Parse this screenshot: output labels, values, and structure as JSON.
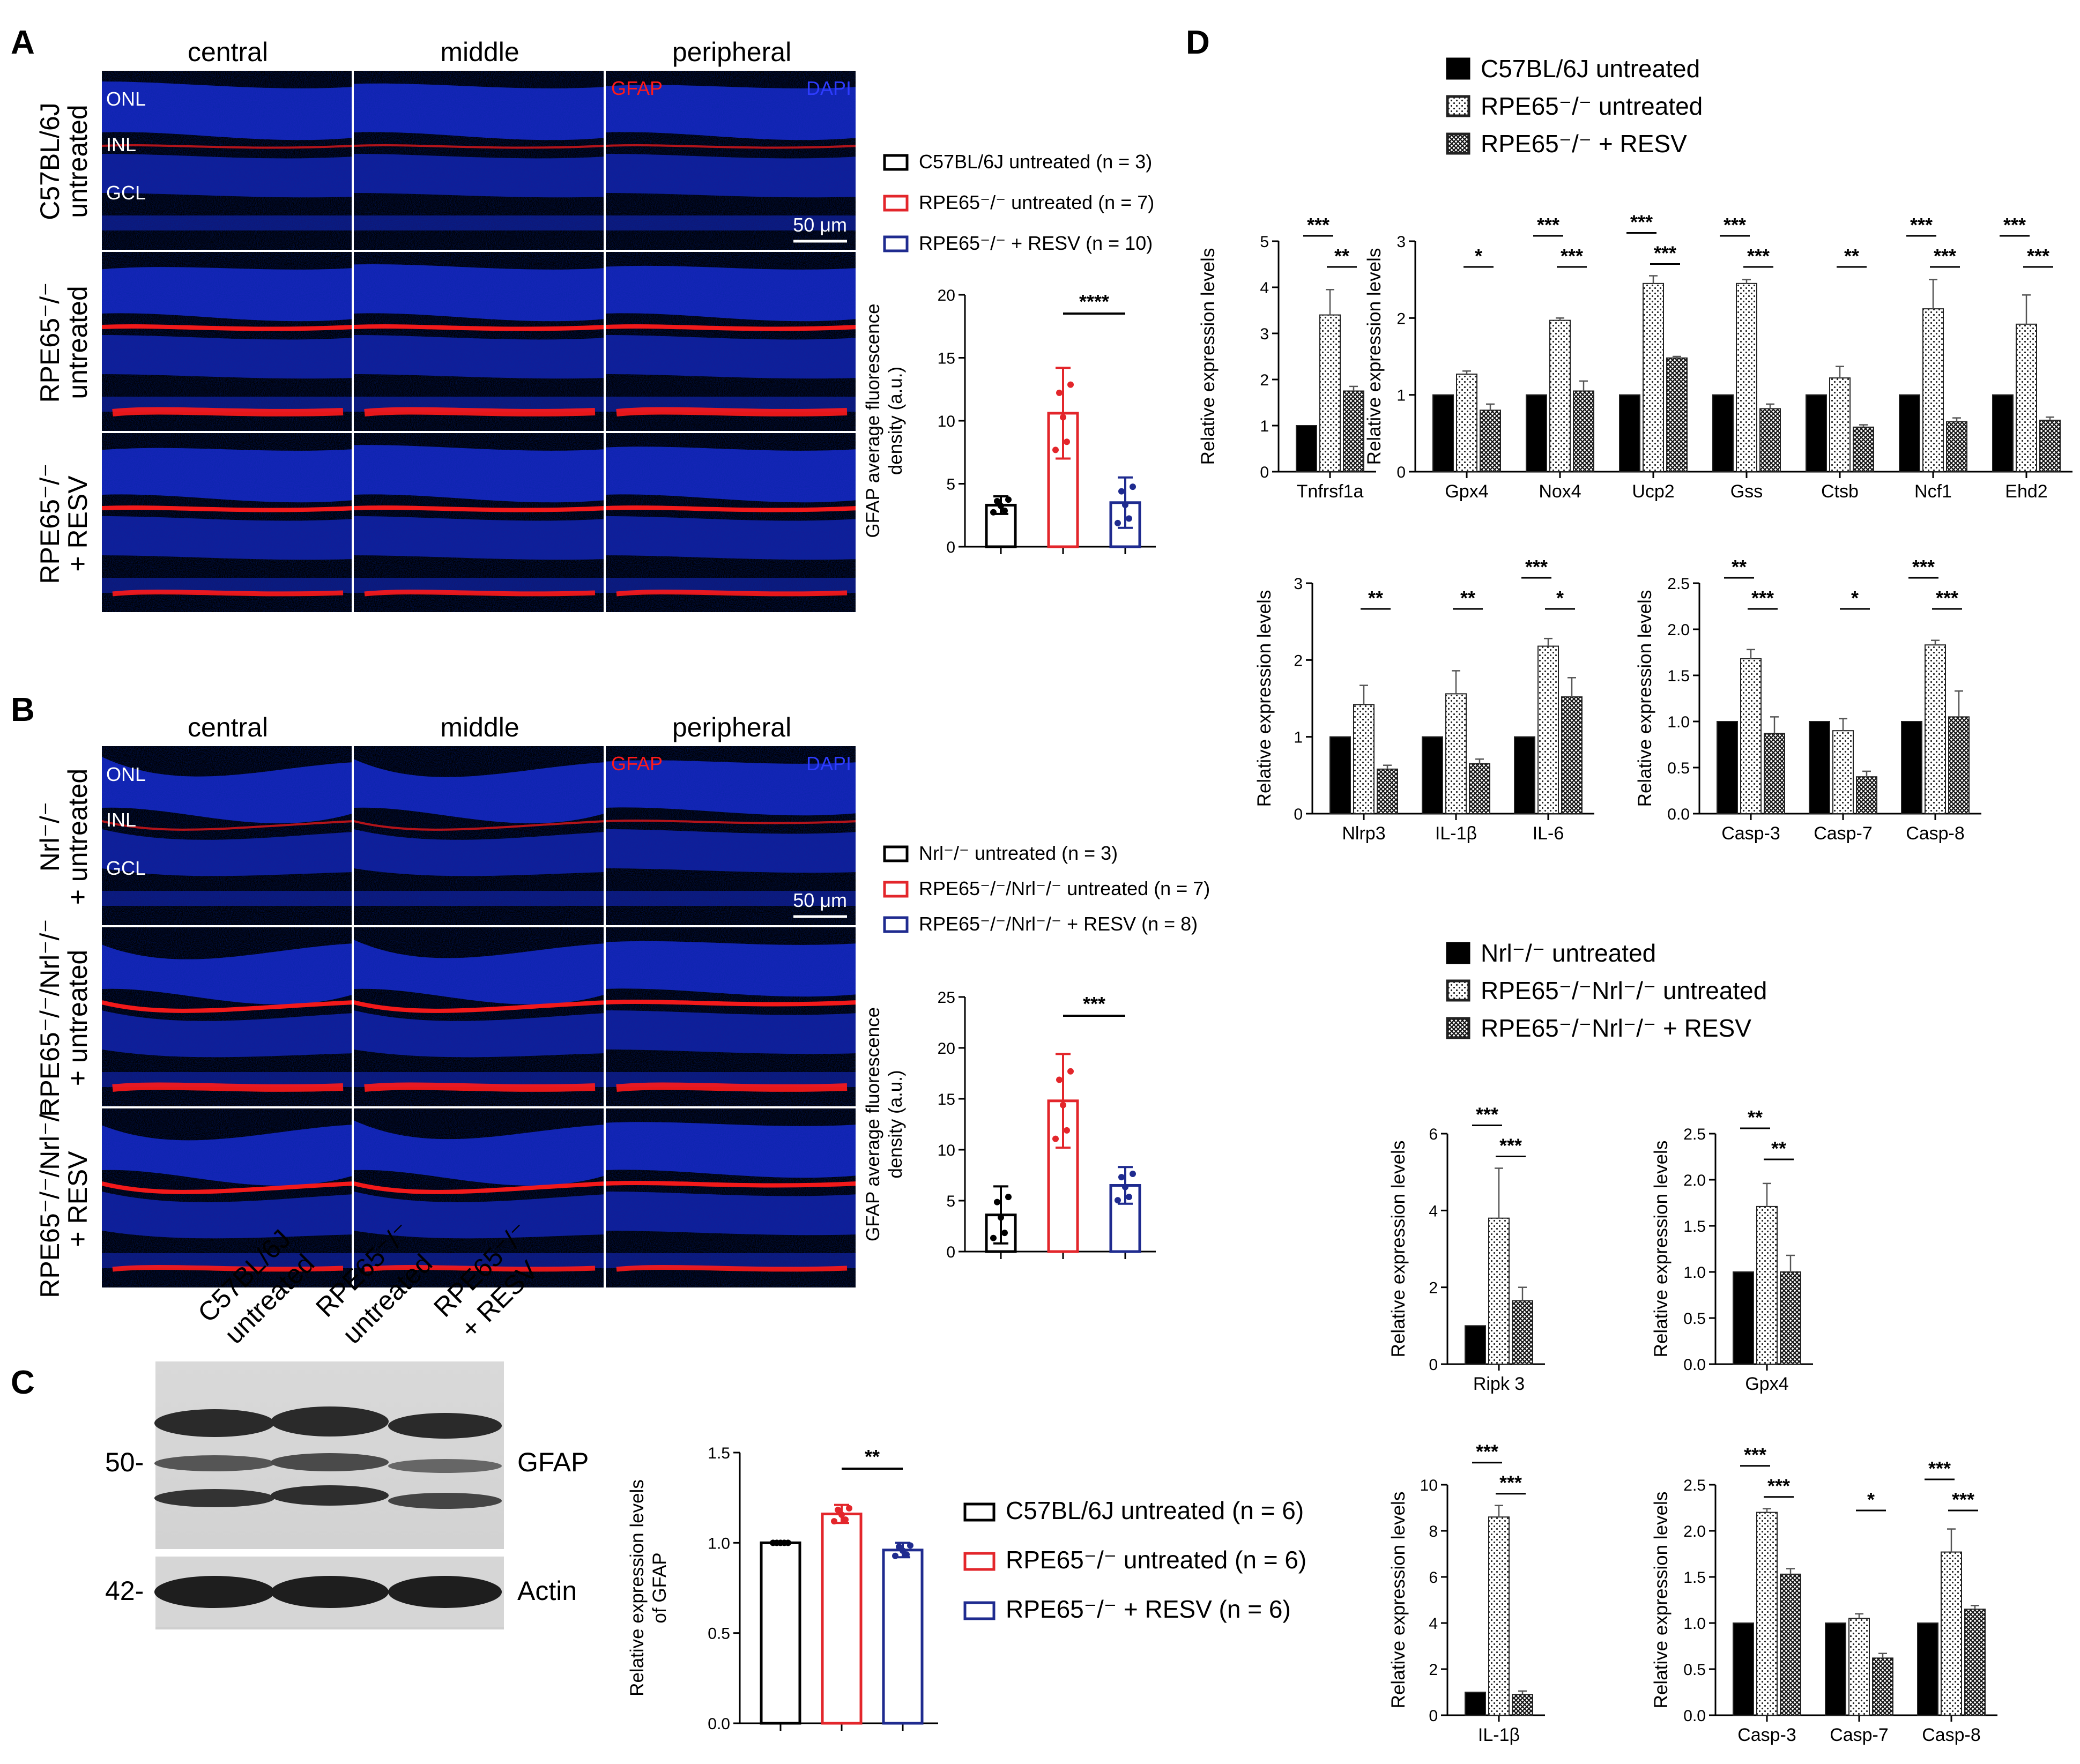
{
  "panels": {
    "a": "A",
    "b": "B",
    "c": "C",
    "d": "D"
  },
  "micro_a": {
    "cols": [
      "central",
      "middle",
      "peripheral"
    ],
    "rows": [
      [
        "C57BL/6J",
        "untreated"
      ],
      [
        "RPE65⁻/⁻",
        "untreated"
      ],
      [
        "RPE65⁻/⁻",
        "+ RESV"
      ]
    ],
    "layers": [
      "ONL",
      "INL",
      "GCL"
    ],
    "stain_red": "GFAP",
    "stain_blue": "DAPI",
    "scale": "50 μm"
  },
  "micro_b": {
    "cols": [
      "central",
      "middle",
      "peripheral"
    ],
    "rows": [
      [
        "Nrl⁻/⁻",
        "+ untreated"
      ],
      [
        "RPE65⁻/⁻/Nrl⁻/⁻",
        "+ untreated"
      ],
      [
        "RPE65⁻/⁻/Nrl⁻/⁻",
        "+ RESV"
      ]
    ],
    "layers": [
      "ONL",
      "INL",
      "GCL"
    ],
    "stain_red": "GFAP",
    "stain_blue": "DAPI",
    "scale": "50 μm"
  },
  "blot_c": {
    "lanes": [
      [
        "C57BL/6J",
        "untreated"
      ],
      [
        "RPE65⁻/⁻",
        "untreated"
      ],
      [
        "RPE65⁻/⁻",
        "+ RESV"
      ]
    ],
    "markers": [
      "50-",
      "42-"
    ],
    "bands": [
      "GFAP",
      "Actin"
    ]
  },
  "legends": {
    "a": [
      "C57BL/6J untreated (n = 3)",
      "RPE65⁻/⁻ untreated (n = 7)",
      "RPE65⁻/⁻ + RESV (n = 10)"
    ],
    "b": [
      "Nrl⁻/⁻ untreated (n = 3)",
      "RPE65⁻/⁻/Nrl⁻/⁻ untreated (n = 7)",
      "RPE65⁻/⁻/Nrl⁻/⁻ + RESV (n = 8)"
    ],
    "c": [
      "C57BL/6J untreated (n = 6)",
      "RPE65⁻/⁻ untreated (n = 6)",
      "RPE65⁻/⁻ + RESV (n = 6)"
    ],
    "d1": [
      "C57BL/6J untreated",
      "RPE65⁻/⁻ untreated",
      "RPE65⁻/⁻ + RESV"
    ],
    "d2": [
      "Nrl⁻/⁻ untreated",
      "RPE65⁻/⁻Nrl⁻/⁻ untreated",
      "RPE65⁻/⁻Nrl⁻/⁻ + RESV"
    ]
  },
  "colors": {
    "black": "#000000",
    "red": "#e3262b",
    "blue": "#1f2b8f",
    "dapi": "#1a2bd8",
    "gfap": "#ff1a1a"
  },
  "chart_data": [
    {
      "id": "a",
      "type": "bar",
      "ylabel": "GFAP average fluorescence density (a.u.)",
      "ylim": [
        0,
        20
      ],
      "yticks": [
        0,
        5,
        10,
        15,
        20
      ],
      "series": [
        {
          "name": "C57BL/6J untreated (n = 3)",
          "value": 3.3,
          "err": 0.7
        },
        {
          "name": "RPE65⁻/⁻ untreated (n = 7)",
          "value": 10.6,
          "err": 3.6
        },
        {
          "name": "RPE65⁻/⁻ + RESV (n = 10)",
          "value": 3.5,
          "err": 2.0
        }
      ],
      "sig": [
        {
          "a": 1,
          "b": 2,
          "t": "****"
        }
      ]
    },
    {
      "id": "b",
      "type": "bar",
      "ylabel": "GFAP average fluorescence density (a.u.)",
      "ylim": [
        0,
        25
      ],
      "yticks": [
        0,
        5,
        10,
        15,
        20,
        25
      ],
      "series": [
        {
          "name": "Nrl⁻/⁻ untreated (n = 3)",
          "value": 3.6,
          "err": 2.8
        },
        {
          "name": "RPE65⁻/⁻/Nrl⁻/⁻ untreated (n = 7)",
          "value": 14.8,
          "err": 4.6
        },
        {
          "name": "RPE65⁻/⁻/Nrl⁻/⁻ + RESV (n = 8)",
          "value": 6.5,
          "err": 1.8
        }
      ],
      "sig": [
        {
          "a": 1,
          "b": 2,
          "t": "***"
        }
      ]
    },
    {
      "id": "c",
      "type": "bar",
      "ylabel": "Relative expression levels of GFAP",
      "ylim": [
        0,
        1.5
      ],
      "yticks": [
        0.0,
        0.5,
        1.0,
        1.5
      ],
      "series": [
        {
          "name": "C57BL/6J untreated (n = 6)",
          "value": 1.0,
          "err": 0.0
        },
        {
          "name": "RPE65⁻/⁻ untreated (n = 6)",
          "value": 1.16,
          "err": 0.05
        },
        {
          "name": "RPE65⁻/⁻ + RESV (n = 6)",
          "value": 0.96,
          "err": 0.04
        }
      ],
      "sig": [
        {
          "a": 1,
          "b": 2,
          "t": "**"
        }
      ]
    },
    {
      "id": "d1",
      "type": "bar",
      "ylabel": "Relative expression levels",
      "ylim": [
        0,
        5
      ],
      "yticks": [
        0,
        1,
        2,
        3,
        4,
        5
      ],
      "categories": [
        "Tnfrsf1a"
      ],
      "values": [
        [
          1,
          3.4,
          1.75
        ]
      ],
      "errs": [
        [
          0,
          0.55,
          0.1
        ]
      ],
      "sig": [
        {
          "g": 0,
          "a": 0,
          "b": 1,
          "t": "***"
        },
        {
          "g": 0,
          "a": 1,
          "b": 2,
          "t": "**"
        }
      ]
    },
    {
      "id": "d2",
      "type": "bar",
      "ylabel": "Relative expression levels",
      "ylim": [
        0,
        3
      ],
      "yticks": [
        0,
        1,
        2,
        3
      ],
      "categories": [
        "Gpx4",
        "Nox4",
        "Ucp2",
        "Gss",
        "Ctsb",
        "Ncf1",
        "Ehd2"
      ],
      "values": [
        [
          1,
          1.27,
          0.8
        ],
        [
          1,
          1.97,
          1.05
        ],
        [
          1,
          2.45,
          1.48
        ],
        [
          1,
          2.45,
          0.82
        ],
        [
          1,
          1.22,
          0.58
        ],
        [
          1,
          2.12,
          0.65
        ],
        [
          1,
          1.92,
          0.67
        ]
      ],
      "errs": [
        [
          0,
          0.04,
          0.08
        ],
        [
          0,
          0.03,
          0.13
        ],
        [
          0,
          0.1,
          0.02
        ],
        [
          0,
          0.05,
          0.06
        ],
        [
          0,
          0.15,
          0.03
        ],
        [
          0,
          0.38,
          0.05
        ],
        [
          0,
          0.38,
          0.04
        ]
      ],
      "sig": [
        {
          "g": 0,
          "a": 1,
          "b": 2,
          "t": "*"
        },
        {
          "g": 1,
          "a": 0,
          "b": 1,
          "t": "***"
        },
        {
          "g": 1,
          "a": 1,
          "b": 2,
          "t": "***"
        },
        {
          "g": 2,
          "a": 0,
          "b": 1,
          "t": "***"
        },
        {
          "g": 2,
          "a": 1,
          "b": 2,
          "t": "***"
        },
        {
          "g": 3,
          "a": 0,
          "b": 1,
          "t": "***"
        },
        {
          "g": 3,
          "a": 1,
          "b": 2,
          "t": "***"
        },
        {
          "g": 4,
          "a": 1,
          "b": 2,
          "t": "**"
        },
        {
          "g": 5,
          "a": 0,
          "b": 1,
          "t": "***"
        },
        {
          "g": 5,
          "a": 1,
          "b": 2,
          "t": "***"
        },
        {
          "g": 6,
          "a": 0,
          "b": 1,
          "t": "***"
        },
        {
          "g": 6,
          "a": 1,
          "b": 2,
          "t": "***"
        }
      ]
    },
    {
      "id": "d3",
      "type": "bar",
      "ylabel": "Relative expression levels",
      "ylim": [
        0,
        3
      ],
      "yticks": [
        0,
        1,
        2,
        3
      ],
      "categories": [
        "Nlrp3",
        "IL-1β",
        "IL-6"
      ],
      "values": [
        [
          1,
          1.42,
          0.58
        ],
        [
          1,
          1.56,
          0.65
        ],
        [
          1,
          2.18,
          1.52
        ]
      ],
      "errs": [
        [
          0,
          0.25,
          0.05
        ],
        [
          0,
          0.3,
          0.06
        ],
        [
          0,
          0.1,
          0.25
        ]
      ],
      "sig": [
        {
          "g": 0,
          "a": 1,
          "b": 2,
          "t": "**"
        },
        {
          "g": 1,
          "a": 1,
          "b": 2,
          "t": "**"
        },
        {
          "g": 2,
          "a": 0,
          "b": 1,
          "t": "***"
        },
        {
          "g": 2,
          "a": 1,
          "b": 2,
          "t": "*"
        }
      ]
    },
    {
      "id": "d4",
      "type": "bar",
      "ylabel": "Relative expression levels",
      "ylim": [
        0,
        2.5
      ],
      "yticks": [
        0.0,
        0.5,
        1.0,
        1.5,
        2.0,
        2.5
      ],
      "categories": [
        "Casp-3",
        "Casp-7",
        "Casp-8"
      ],
      "values": [
        [
          1,
          1.68,
          0.87
        ],
        [
          1,
          0.9,
          0.4
        ],
        [
          1,
          1.83,
          1.05
        ]
      ],
      "errs": [
        [
          0,
          0.1,
          0.18
        ],
        [
          0,
          0.13,
          0.06
        ],
        [
          0,
          0.05,
          0.28
        ]
      ],
      "sig": [
        {
          "g": 0,
          "a": 0,
          "b": 1,
          "t": "**"
        },
        {
          "g": 0,
          "a": 1,
          "b": 2,
          "t": "***"
        },
        {
          "g": 1,
          "a": 1,
          "b": 2,
          "t": "*"
        },
        {
          "g": 2,
          "a": 0,
          "b": 1,
          "t": "***"
        },
        {
          "g": 2,
          "a": 1,
          "b": 2,
          "t": "***"
        }
      ]
    },
    {
      "id": "d5",
      "type": "bar",
      "ylabel": "Relative expression levels",
      "ylim": [
        0,
        6
      ],
      "yticks": [
        0,
        2,
        4,
        6
      ],
      "categories": [
        "Ripk 3"
      ],
      "values": [
        [
          1,
          3.8,
          1.65
        ]
      ],
      "errs": [
        [
          0,
          1.3,
          0.35
        ]
      ],
      "sig": [
        {
          "g": 0,
          "a": 0,
          "b": 1,
          "t": "***"
        },
        {
          "g": 0,
          "a": 1,
          "b": 2,
          "t": "***"
        }
      ]
    },
    {
      "id": "d6",
      "type": "bar",
      "ylabel": "Relative expression levels",
      "ylim": [
        0,
        2.5
      ],
      "yticks": [
        0.0,
        0.5,
        1.0,
        1.5,
        2.0,
        2.5
      ],
      "categories": [
        "Gpx4"
      ],
      "values": [
        [
          1,
          1.71,
          1.0
        ]
      ],
      "errs": [
        [
          0,
          0.25,
          0.18
        ]
      ],
      "sig": [
        {
          "g": 0,
          "a": 0,
          "b": 1,
          "t": "**"
        },
        {
          "g": 0,
          "a": 1,
          "b": 2,
          "t": "**"
        }
      ]
    },
    {
      "id": "d7",
      "type": "bar",
      "ylabel": "Relative expression levels",
      "ylim": [
        0,
        10
      ],
      "yticks": [
        0,
        2,
        4,
        6,
        8,
        10
      ],
      "categories": [
        "IL-1β"
      ],
      "values": [
        [
          1,
          8.6,
          0.9
        ]
      ],
      "errs": [
        [
          0,
          0.5,
          0.15
        ]
      ],
      "sig": [
        {
          "g": 0,
          "a": 0,
          "b": 1,
          "t": "***"
        },
        {
          "g": 0,
          "a": 1,
          "b": 2,
          "t": "***"
        }
      ]
    },
    {
      "id": "d8",
      "type": "bar",
      "ylabel": "Relative expression levels",
      "ylim": [
        0,
        2.5
      ],
      "yticks": [
        0.0,
        0.5,
        1.0,
        1.5,
        2.0,
        2.5
      ],
      "categories": [
        "Casp-3",
        "Casp-7",
        "Casp-8"
      ],
      "values": [
        [
          1,
          2.2,
          1.53
        ],
        [
          1,
          1.05,
          0.62
        ],
        [
          1,
          1.77,
          1.15
        ]
      ],
      "errs": [
        [
          0,
          0.04,
          0.06
        ],
        [
          0,
          0.05,
          0.05
        ],
        [
          0,
          0.25,
          0.04
        ]
      ],
      "sig": [
        {
          "g": 0,
          "a": 0,
          "b": 1,
          "t": "***"
        },
        {
          "g": 0,
          "a": 1,
          "b": 2,
          "t": "***"
        },
        {
          "g": 1,
          "a": 1,
          "b": 2,
          "t": "*"
        },
        {
          "g": 2,
          "a": 0,
          "b": 1,
          "t": "***"
        },
        {
          "g": 2,
          "a": 1,
          "b": 2,
          "t": "***"
        }
      ]
    }
  ]
}
